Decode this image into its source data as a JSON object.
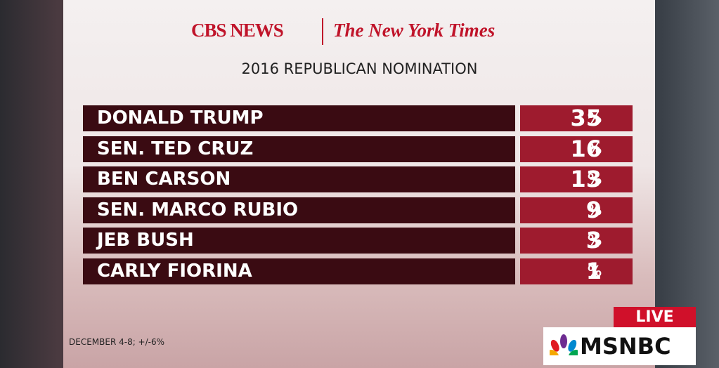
{
  "header": {
    "network": "CBS NEWS",
    "partner": "The New York Times",
    "title": "2016 REPUBLICAN NOMINATION"
  },
  "table": {
    "rows": [
      {
        "name": "DONALD TRUMP",
        "value": 35,
        "unit": "%"
      },
      {
        "name": "SEN. TED CRUZ",
        "value": 16,
        "unit": "%"
      },
      {
        "name": "BEN CARSON",
        "value": 13,
        "unit": "%"
      },
      {
        "name": "SEN. MARCO RUBIO",
        "value": 9,
        "unit": "%"
      },
      {
        "name": "JEB BUSH",
        "value": 3,
        "unit": "%"
      },
      {
        "name": "CARLY FIORINA",
        "value": 1,
        "unit": "%"
      }
    ]
  },
  "footnote": "DECEMBER 4-8; +/-6%",
  "live": "LIVE",
  "channel": "MSNBC"
}
